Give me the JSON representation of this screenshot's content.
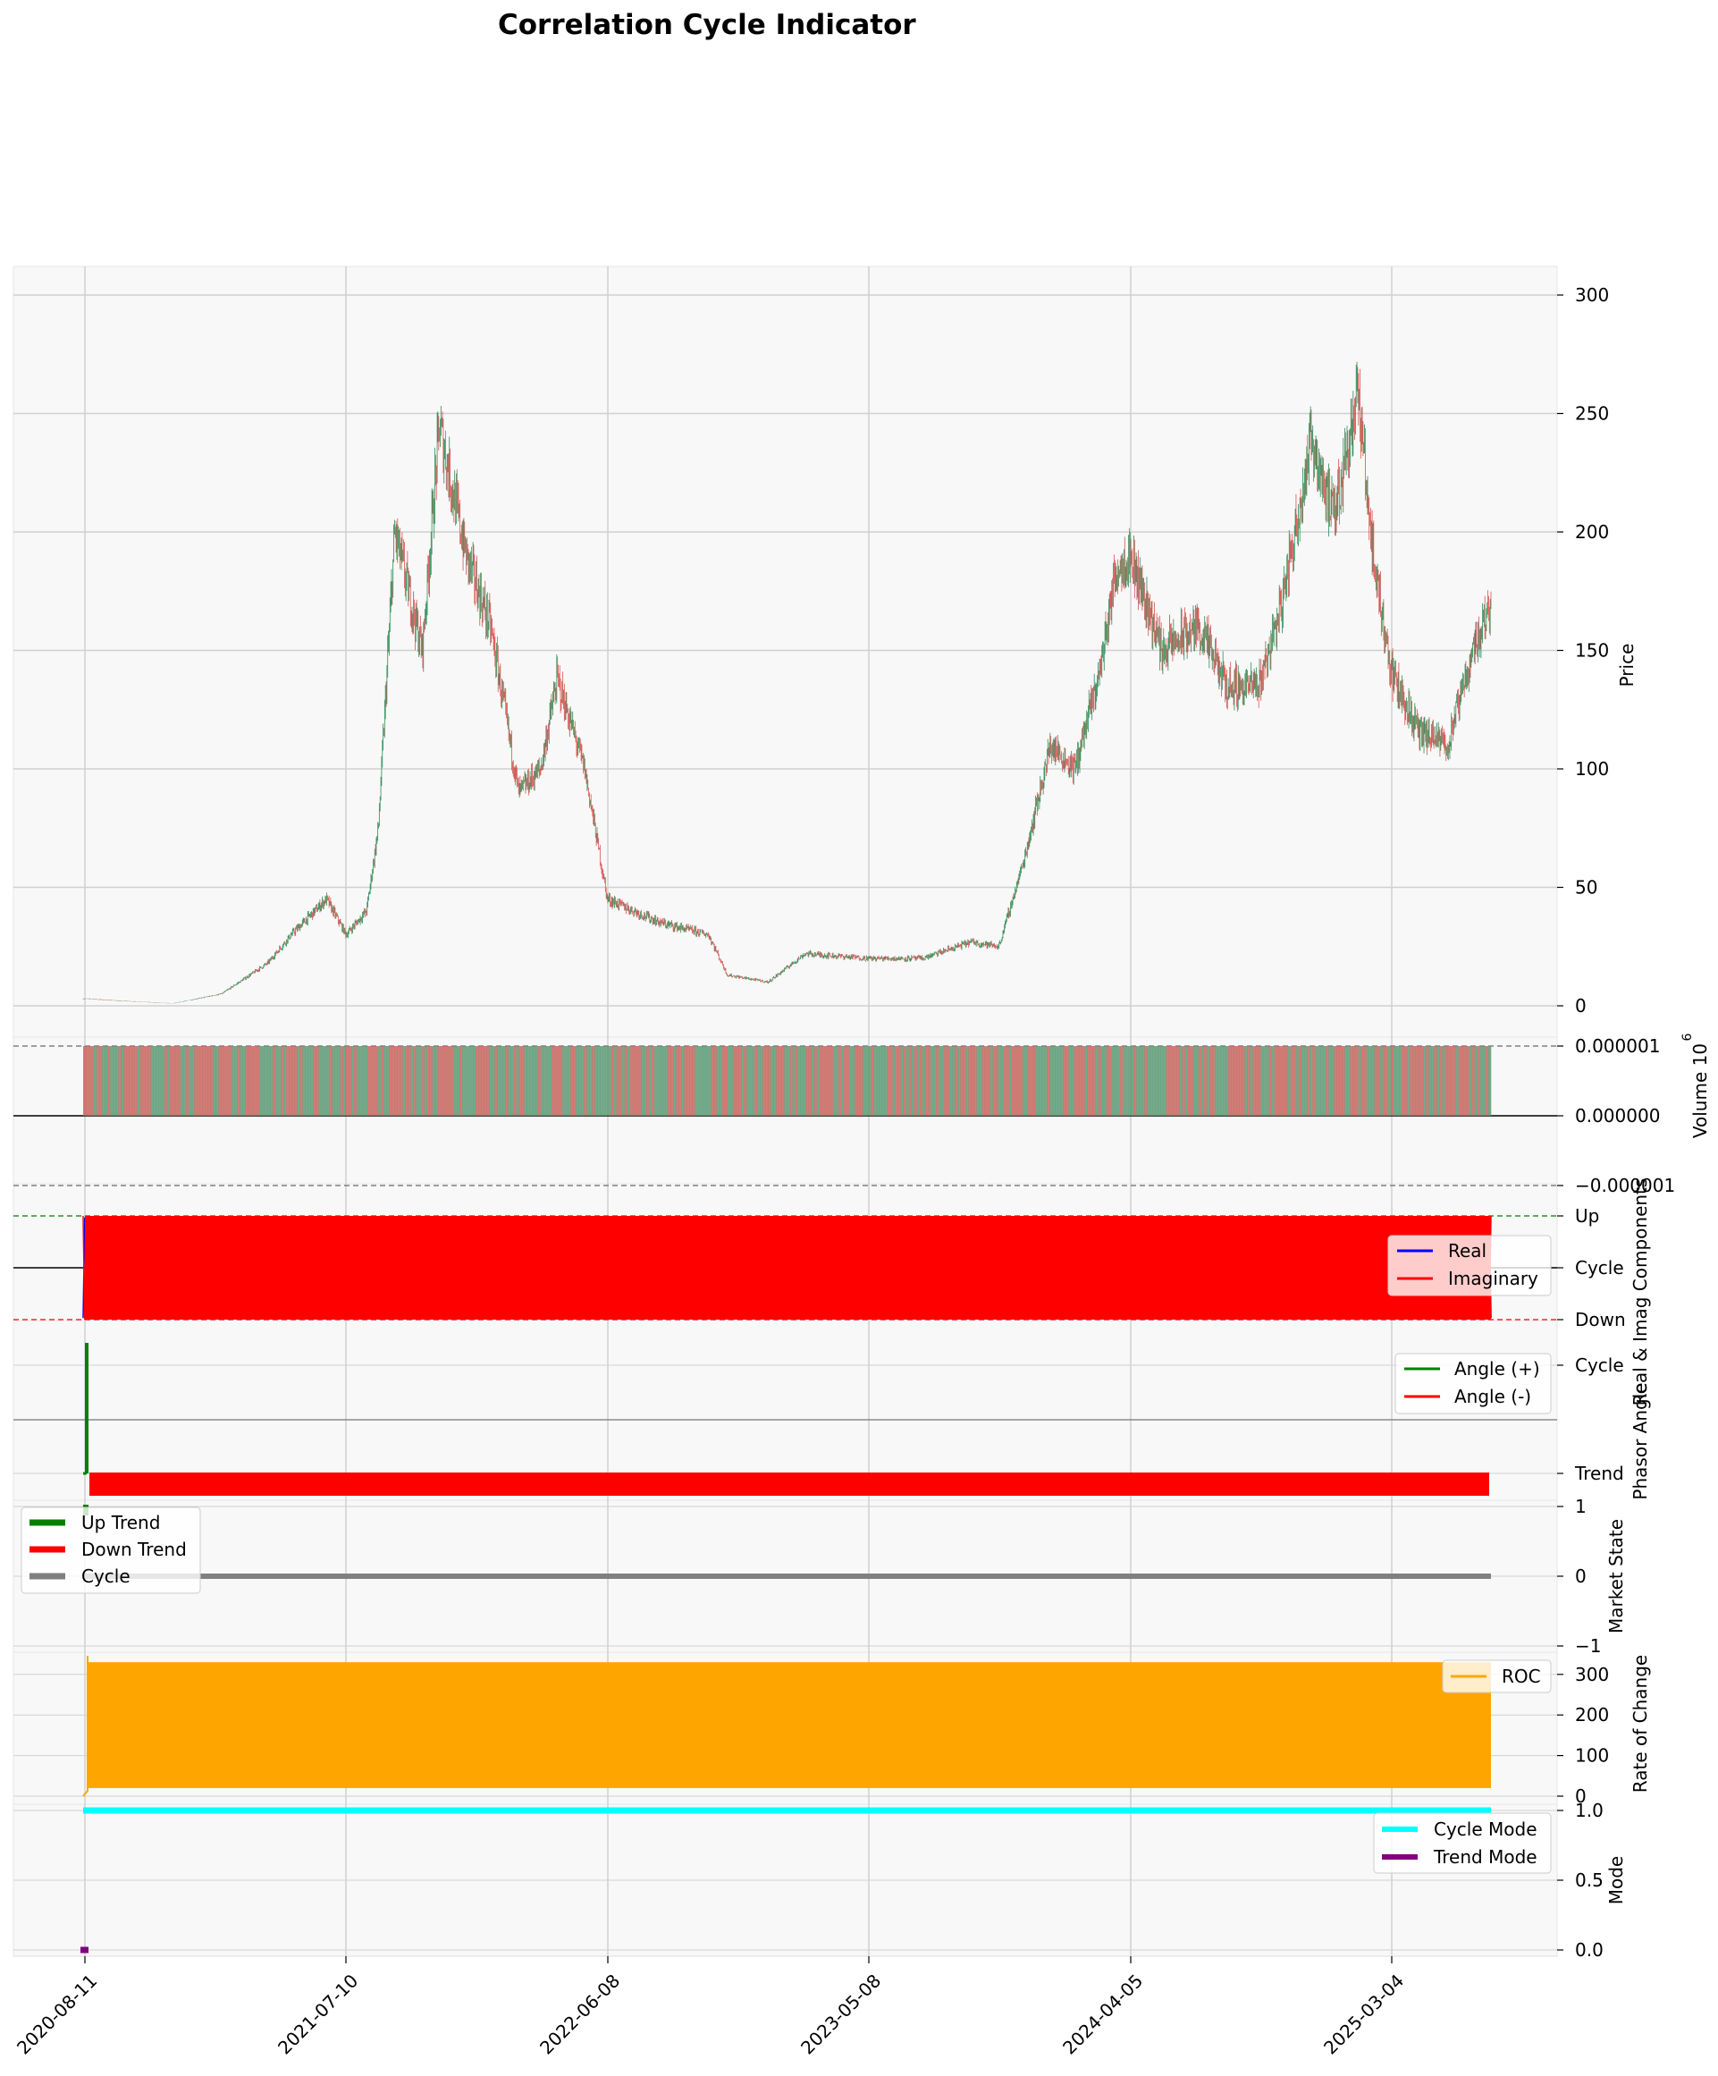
{
  "title": "Correlation Cycle Indicator",
  "x_tick_labels": [
    "2020-08-11",
    "2021-07-10",
    "2022-06-08",
    "2023-05-08",
    "2024-04-05",
    "2025-03-04"
  ],
  "colors": {
    "up_candle": "#2e8b57",
    "down_candle": "#d9534f",
    "real": "#0000ff",
    "imaginary": "#ff0000",
    "angle_pos": "#008000",
    "angle_neg": "#ff0000",
    "up_trend": "#008000",
    "down_trend": "#ff0000",
    "cycle": "#808080",
    "roc": "#ffa500",
    "cycle_mode": "#00ffff",
    "trend_mode": "#800080",
    "panel_bg": "#f8f8f8",
    "grid": "#d0d0d0"
  },
  "chart_data": [
    {
      "panel": "price",
      "type": "candlestick",
      "ylabel": "Price",
      "y_ticks": [
        "0",
        "50",
        "100",
        "150",
        "200",
        "250",
        "300"
      ],
      "ylim": [
        -5,
        310
      ],
      "grid": true,
      "x": [
        "2020-08-11",
        "2020-10-01",
        "2020-12-01",
        "2021-02-01",
        "2021-04-01",
        "2021-05-01",
        "2021-06-15",
        "2021-07-10",
        "2021-08-05",
        "2021-08-20",
        "2021-09-10",
        "2021-10-15",
        "2021-11-06",
        "2021-12-10",
        "2022-01-10",
        "2022-02-15",
        "2022-03-15",
        "2022-04-05",
        "2022-05-10",
        "2022-06-08",
        "2022-08-15",
        "2022-10-15",
        "2022-11-08",
        "2022-12-30",
        "2023-02-15",
        "2023-05-08",
        "2023-07-15",
        "2023-09-15",
        "2023-10-20",
        "2023-11-20",
        "2023-12-25",
        "2024-01-25",
        "2024-02-25",
        "2024-03-18",
        "2024-04-05",
        "2024-05-15",
        "2024-07-01",
        "2024-08-05",
        "2024-09-15",
        "2024-10-15",
        "2024-11-22",
        "2024-12-20",
        "2025-01-19",
        "2025-02-10",
        "2025-03-04",
        "2025-04-08",
        "2025-05-15",
        "2025-06-15",
        "2025-07-15",
        "2025-08-15"
      ],
      "close": [
        3,
        2,
        1,
        5,
        18,
        30,
        45,
        30,
        40,
        75,
        200,
        150,
        245,
        190,
        160,
        90,
        100,
        138,
        100,
        45,
        35,
        30,
        13,
        10,
        22,
        20,
        20,
        27,
        25,
        60,
        110,
        100,
        140,
        185,
        190,
        150,
        160,
        135,
        135,
        170,
        240,
        205,
        260,
        185,
        140,
        115,
        110,
        150,
        175,
        150
      ],
      "candle_count": 1850
    },
    {
      "panel": "volume",
      "type": "bar",
      "ylabel": "Volume  10",
      "ylabel_exponent": "6",
      "y_ticks": [
        "−0.000001",
        "0.000000",
        "0.000001"
      ],
      "values_note": "all bars at 1e-6 (×10^6 scale), alternating up/down colors"
    },
    {
      "panel": "real_imag",
      "type": "line",
      "ylabel": "Real & Imag Components",
      "y_ticks": [
        "Down",
        "Cycle",
        "Up"
      ],
      "legend": [
        "Real",
        "Imaginary"
      ],
      "legend_position": "right",
      "series": [
        {
          "name": "Real",
          "values": [
            -1,
            1,
            -1,
            1
          ]
        },
        {
          "name": "Imaginary",
          "values": [
            1,
            -1,
            1,
            -1
          ]
        }
      ],
      "ylim": [
        -1.05,
        1.05
      ]
    },
    {
      "panel": "phasor_angle",
      "type": "line",
      "ylabel": "Phasor Angle",
      "y_ticks": [
        "Trend",
        "Cycle"
      ],
      "legend": [
        "Angle (+)",
        "Angle (-)"
      ],
      "legend_position": "top-right",
      "series": [
        {
          "name": "Angle (+)",
          "values": [
            180
          ]
        },
        {
          "name": "Angle (-)",
          "values": [
            -180
          ]
        }
      ]
    },
    {
      "panel": "market_state",
      "type": "line",
      "ylabel": "Market State",
      "y_ticks": [
        "−1",
        "0",
        "1"
      ],
      "ylim": [
        -1,
        1
      ],
      "legend": [
        "Up Trend",
        "Down Trend",
        "Cycle"
      ],
      "legend_position": "top-left",
      "series": [
        {
          "name": "Cycle",
          "values": [
            0
          ]
        }
      ]
    },
    {
      "panel": "roc",
      "type": "area",
      "ylabel": "Rate of Change",
      "y_ticks": [
        "0",
        "100",
        "200",
        "300"
      ],
      "ylim": [
        -10,
        350
      ],
      "legend": [
        "ROC"
      ],
      "legend_position": "top-right",
      "series": [
        {
          "name": "ROC",
          "range": [
            20,
            330
          ]
        }
      ]
    },
    {
      "panel": "mode",
      "type": "line",
      "ylabel": "Mode",
      "y_ticks": [
        "0.0",
        "0.5",
        "1.0"
      ],
      "ylim": [
        0,
        1
      ],
      "legend": [
        "Cycle Mode",
        "Trend Mode"
      ],
      "legend_position": "top-right",
      "series": [
        {
          "name": "Cycle Mode",
          "values": [
            1.0
          ]
        },
        {
          "name": "Trend Mode",
          "values": [
            0.0
          ]
        }
      ]
    }
  ]
}
